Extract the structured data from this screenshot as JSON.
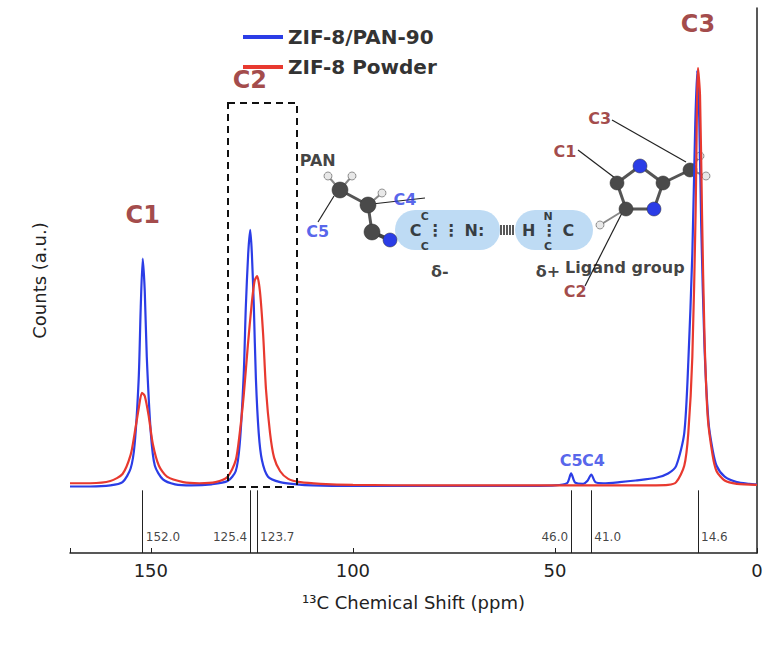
{
  "chart_data": {
    "type": "line",
    "x_label": "¹³C Chemical Shift (ppm)",
    "y_label": "Counts (a.u.)",
    "xlim": [
      170,
      0
    ],
    "xticks": [
      0,
      50,
      100,
      150
    ],
    "ylim": [
      0,
      100
    ],
    "tick_labels": "x",
    "grid": false,
    "legend": "upper left",
    "series": [
      {
        "name": "ZIF-8/PAN-90",
        "color": "#2b3de6",
        "x": [
          170,
          165,
          160,
          157,
          155,
          154,
          153,
          152.5,
          152,
          151.5,
          151,
          150,
          149,
          147,
          144,
          140,
          135,
          131,
          129,
          128,
          127,
          126.5,
          125.9,
          125.4,
          125,
          124.5,
          124,
          123.3,
          122.5,
          121,
          118,
          114,
          110,
          100,
          90,
          80,
          70,
          60,
          50,
          47,
          46,
          45,
          43,
          42,
          41,
          40,
          38,
          34,
          30,
          25,
          22,
          20,
          18,
          17,
          16,
          15.3,
          14.8,
          14.3,
          13.8,
          13,
          12,
          11,
          10,
          8,
          5,
          2,
          0
        ],
        "values": [
          12.2,
          12.2,
          12.4,
          13,
          15.5,
          20,
          32,
          45,
          54,
          48,
          36,
          22,
          16,
          13.5,
          12.6,
          12.4,
          12.6,
          13.2,
          15,
          20,
          33,
          45,
          55,
          59.3,
          55,
          45,
          32,
          22,
          17,
          14,
          13,
          12.6,
          12.4,
          12.3,
          12.3,
          12.3,
          12.3,
          12.3,
          12.4,
          12.8,
          14.6,
          12.9,
          12.7,
          13.2,
          14.4,
          13,
          12.8,
          13,
          13.3,
          13.8,
          14.6,
          16,
          22,
          35,
          55,
          78,
          88.5,
          80,
          60,
          38,
          24,
          19,
          16,
          14,
          13,
          12.7,
          12.6
        ]
      },
      {
        "name": "ZIF-8 Powder",
        "color": "#e8392f",
        "x": [
          170,
          165,
          160,
          157,
          155,
          154,
          153,
          152.2,
          151.5,
          150.5,
          149.5,
          148,
          146,
          142,
          138,
          134,
          131,
          129,
          128,
          127,
          126,
          125,
          124.3,
          123.7,
          123,
          122.2,
          121.5,
          120.5,
          119.5,
          118,
          116,
          113,
          108,
          100,
          80,
          60,
          40,
          30,
          22,
          20,
          18,
          17,
          16,
          15.2,
          14.6,
          14.1,
          13.6,
          13,
          12.2,
          11,
          10,
          8,
          5,
          0
        ],
        "values": [
          12.8,
          12.8,
          13.2,
          14.5,
          18,
          22,
          26.5,
          29.4,
          28.8,
          25,
          20,
          16,
          14,
          13,
          12.8,
          13,
          14,
          17,
          22,
          29,
          38,
          46,
          50,
          50.8,
          48,
          40,
          30,
          22,
          17.5,
          15,
          13.6,
          13,
          12.7,
          12.5,
          12.4,
          12.4,
          12.4,
          12.4,
          12.5,
          13,
          16,
          22,
          36,
          62,
          89,
          84,
          62,
          40,
          25,
          18,
          15,
          13.3,
          12.7,
          12.5
        ]
      }
    ],
    "reference_lines": [
      {
        "value": 152,
        "label": "152.0"
      },
      {
        "value": 125.4,
        "label": "125.4"
      },
      {
        "value": 123.7,
        "label": "123.7"
      },
      {
        "value": 46,
        "label": "46.0"
      },
      {
        "value": 41,
        "label": "41.0"
      },
      {
        "value": 14.6,
        "label": "14.6"
      }
    ],
    "peak_labels": [
      {
        "text": "C1",
        "x": 152,
        "y": 62,
        "color": "#8b1a1a"
      },
      {
        "text": "C2",
        "x": 125.5,
        "y": 86.8,
        "color": "#8b1a1a"
      },
      {
        "text": "C3",
        "x": 14.6,
        "y": 97,
        "color": "#8b1a1a"
      }
    ],
    "annotations": [
      {
        "text": "C5",
        "x": 46,
        "y": 17,
        "color": "#2b3de6"
      },
      {
        "text": "C4",
        "x": 40.5,
        "y": 17,
        "color": "#2b3de6"
      },
      {
        "text": "PAN",
        "x": 108.7,
        "y": 72.1,
        "color": "#111111"
      },
      {
        "text": "C4",
        "x": 87.1,
        "y": 64.8,
        "color": "#2b3de6"
      },
      {
        "text": "C5",
        "x": 108.7,
        "y": 58.9,
        "color": "#2b3de6"
      },
      {
        "text": "C",
        "x": 82.2,
        "y": 61.8,
        "color": "#111111"
      },
      {
        "text": "C ⋮⋮ N:",
        "x": 76.7,
        "y": 59.1,
        "color": "#111111"
      },
      {
        "text": "C",
        "x": 82.2,
        "y": 56.3,
        "color": "#111111"
      },
      {
        "text": "N",
        "x": 51.7,
        "y": 61.8,
        "color": "#111111"
      },
      {
        "text": "H ⋮ C",
        "x": 51.7,
        "y": 59.1,
        "color": "#111111"
      },
      {
        "text": "C",
        "x": 51.7,
        "y": 56.3,
        "color": "#111111"
      },
      {
        "text": "δ-",
        "x": 78.5,
        "y": 51.6,
        "color": "#111111"
      },
      {
        "text": "δ+",
        "x": 51.7,
        "y": 51.6,
        "color": "#111111"
      },
      {
        "text": "Ligand group",
        "x": 32.7,
        "y": 52.3,
        "color": "#111111"
      },
      {
        "text": "C1",
        "x": 47.5,
        "y": 73.6,
        "color": "#8b1a1a"
      },
      {
        "text": "C3",
        "x": 38.9,
        "y": 79.8,
        "color": "#8b1a1a"
      },
      {
        "text": "C2",
        "x": 45,
        "y": 47.9,
        "color": "#8b1a1a"
      }
    ]
  }
}
